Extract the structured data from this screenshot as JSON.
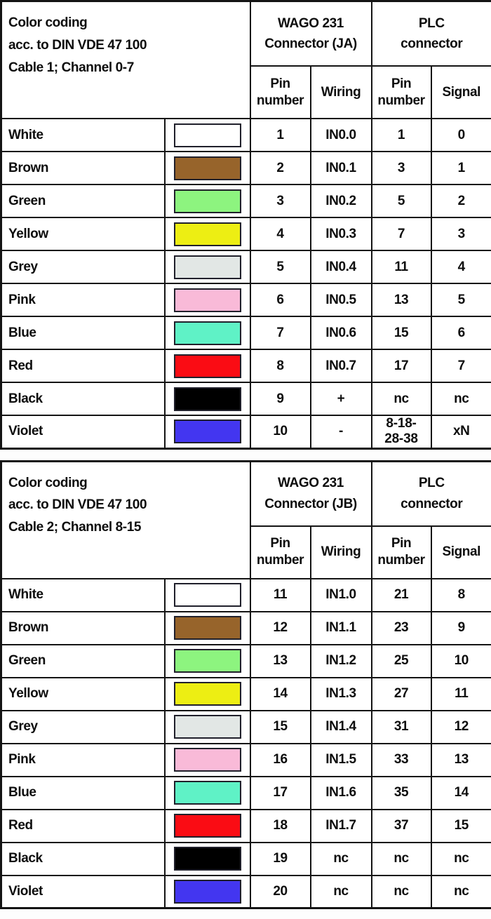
{
  "page": {
    "background_color": "#ffffff",
    "grid_line_color": "#141414"
  },
  "tables": [
    {
      "title": "Color coding\nacc. to DIN VDE 47 100\nCable 1; Channel 0-7",
      "wago_header": "WAGO 231\nConnector (JA)",
      "plc_header": "PLC\nconnector",
      "subheaders": {
        "pin": "Pin\nnumber",
        "wiring": "Wiring",
        "plc_pin": "Pin\nnumber",
        "signal": "Signal"
      },
      "rows": [
        {
          "color_name": "White",
          "swatch_color": "#ffffff",
          "pin": "1",
          "wiring": "IN0.0",
          "plc_pin": "1",
          "signal": "0"
        },
        {
          "color_name": "Brown",
          "swatch_color": "#97642b",
          "pin": "2",
          "wiring": "IN0.1",
          "plc_pin": "3",
          "signal": "1"
        },
        {
          "color_name": "Green",
          "swatch_color": "#8df47f",
          "pin": "3",
          "wiring": "IN0.2",
          "plc_pin": "5",
          "signal": "2"
        },
        {
          "color_name": "Yellow",
          "swatch_color": "#edee13",
          "pin": "4",
          "wiring": "IN0.3",
          "plc_pin": "7",
          "signal": "3"
        },
        {
          "color_name": "Grey",
          "swatch_color": "#e2e7e5",
          "pin": "5",
          "wiring": "IN0.4",
          "plc_pin": "11",
          "signal": "4"
        },
        {
          "color_name": "Pink",
          "swatch_color": "#f9bad8",
          "pin": "6",
          "wiring": "IN0.5",
          "plc_pin": "13",
          "signal": "5"
        },
        {
          "color_name": "Blue",
          "swatch_color": "#5ff2c6",
          "pin": "7",
          "wiring": "IN0.6",
          "plc_pin": "15",
          "signal": "6"
        },
        {
          "color_name": "Red",
          "swatch_color": "#fa0c14",
          "pin": "8",
          "wiring": "IN0.7",
          "plc_pin": "17",
          "signal": "7"
        },
        {
          "color_name": "Black",
          "swatch_color": "#000000",
          "pin": "9",
          "wiring": "+",
          "plc_pin": "nc",
          "signal": "nc"
        },
        {
          "color_name": "Violet",
          "swatch_color": "#4336f0",
          "pin": "10",
          "wiring": "-",
          "plc_pin": "8-18-\n28-38",
          "signal": "xN"
        }
      ]
    },
    {
      "title": "Color coding\nacc. to DIN VDE 47 100\nCable 2; Channel 8-15",
      "wago_header": "WAGO 231\nConnector (JB)",
      "plc_header": "PLC\nconnector",
      "subheaders": {
        "pin": "Pin\nnumber",
        "wiring": "Wiring",
        "plc_pin": "Pin\nnumber",
        "signal": "Signal"
      },
      "rows": [
        {
          "color_name": "White",
          "swatch_color": "#ffffff",
          "pin": "11",
          "wiring": "IN1.0",
          "plc_pin": "21",
          "signal": "8"
        },
        {
          "color_name": "Brown",
          "swatch_color": "#97642b",
          "pin": "12",
          "wiring": "IN1.1",
          "plc_pin": "23",
          "signal": "9"
        },
        {
          "color_name": "Green",
          "swatch_color": "#8df47f",
          "pin": "13",
          "wiring": "IN1.2",
          "plc_pin": "25",
          "signal": "10"
        },
        {
          "color_name": "Yellow",
          "swatch_color": "#edee13",
          "pin": "14",
          "wiring": "IN1.3",
          "plc_pin": "27",
          "signal": "11"
        },
        {
          "color_name": "Grey",
          "swatch_color": "#e2e7e5",
          "pin": "15",
          "wiring": "IN1.4",
          "plc_pin": "31",
          "signal": "12"
        },
        {
          "color_name": "Pink",
          "swatch_color": "#f9bad8",
          "pin": "16",
          "wiring": "IN1.5",
          "plc_pin": "33",
          "signal": "13"
        },
        {
          "color_name": "Blue",
          "swatch_color": "#5ff2c6",
          "pin": "17",
          "wiring": "IN1.6",
          "plc_pin": "35",
          "signal": "14"
        },
        {
          "color_name": "Red",
          "swatch_color": "#fa0c14",
          "pin": "18",
          "wiring": "IN1.7",
          "plc_pin": "37",
          "signal": "15"
        },
        {
          "color_name": "Black",
          "swatch_color": "#000000",
          "pin": "19",
          "wiring": "nc",
          "plc_pin": "nc",
          "signal": "nc"
        },
        {
          "color_name": "Violet",
          "swatch_color": "#4336f0",
          "pin": "20",
          "wiring": "nc",
          "plc_pin": "nc",
          "signal": "nc"
        }
      ]
    }
  ]
}
